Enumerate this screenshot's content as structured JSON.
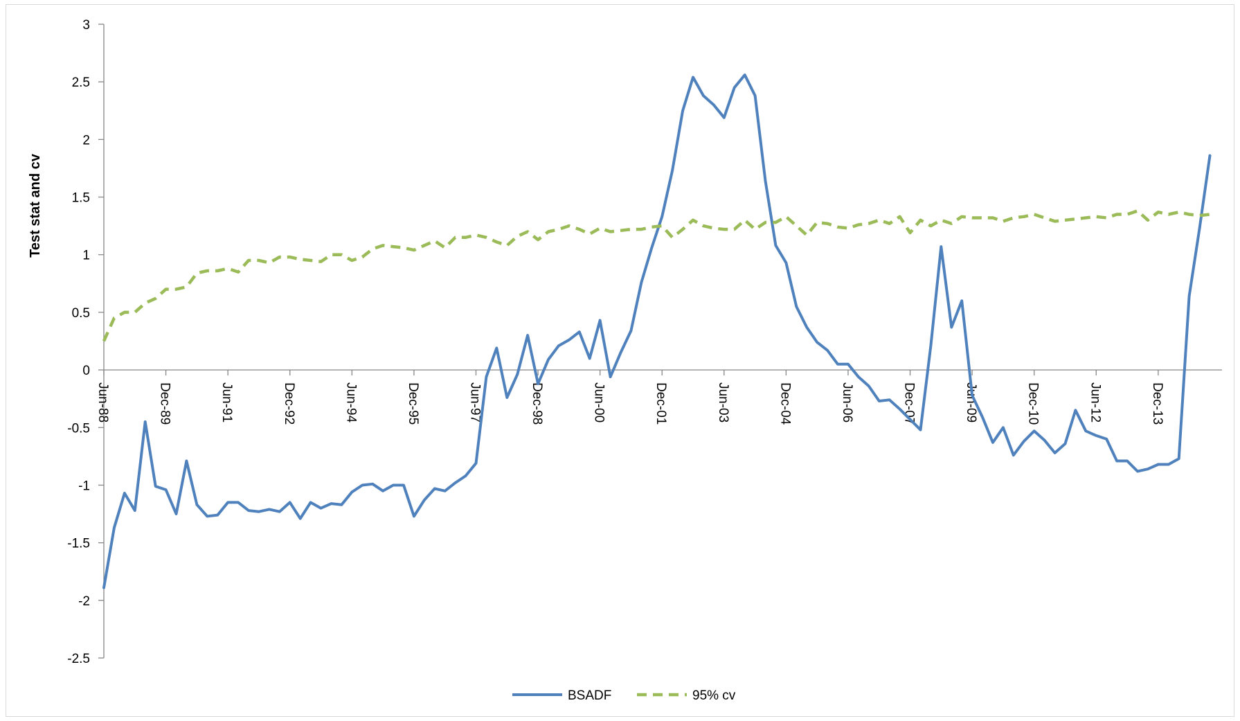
{
  "chart_data": {
    "type": "line",
    "title": "",
    "xlabel": "",
    "ylabel": "Test stat and cv",
    "ylim": [
      -2.5,
      3
    ],
    "yticks": [
      3,
      2.5,
      2,
      1.5,
      1,
      0.5,
      0,
      -0.5,
      -1,
      -1.5,
      -2,
      -2.5
    ],
    "ytick_labels": [
      "3",
      "2.5",
      "2",
      "1.5",
      "1",
      "0.5",
      "0",
      "-0.5",
      "-1",
      "-1.5",
      "-2",
      "-2.5"
    ],
    "x_range": [
      "Jun-88",
      "Mar-15"
    ],
    "xtick_labels": [
      "Jun-88",
      "Dec-89",
      "Jun-91",
      "Dec-92",
      "Jun-94",
      "Dec-95",
      "Jun-97",
      "Dec-98",
      "Jun-00",
      "Dec-01",
      "Jun-03",
      "Dec-04",
      "Jun-06",
      "Dec-07",
      "Jun-09",
      "Dec-10",
      "Jun-12",
      "Dec-13"
    ],
    "grid": false,
    "legend_position": "bottom",
    "series": [
      {
        "name": "BSADF",
        "color": "#4f81bd",
        "style": "solid",
        "values": [
          -1.89,
          -1.37,
          -1.07,
          -1.22,
          -0.45,
          -1.01,
          -1.04,
          -1.25,
          -0.79,
          -1.17,
          -1.27,
          -1.26,
          -1.15,
          -1.15,
          -1.22,
          -1.23,
          -1.21,
          -1.23,
          -1.15,
          -1.29,
          -1.15,
          -1.2,
          -1.16,
          -1.17,
          -1.06,
          -1,
          -0.99,
          -1.05,
          -1,
          -1,
          -1.27,
          -1.13,
          -1.03,
          -1.05,
          -0.98,
          -0.92,
          -0.81,
          -0.06,
          0.19,
          -0.24,
          -0.04,
          0.3,
          -0.12,
          0.09,
          0.21,
          0.26,
          0.33,
          0.1,
          0.43,
          -0.06,
          0.15,
          0.34,
          0.76,
          1.06,
          1.33,
          1.73,
          2.25,
          2.54,
          2.38,
          2.3,
          2.19,
          2.45,
          2.56,
          2.38,
          1.64,
          1.08,
          0.93,
          0.55,
          0.37,
          0.24,
          0.17,
          0.05,
          0.05,
          -0.06,
          -0.14,
          -0.27,
          -0.26,
          -0.34,
          -0.43,
          -0.52,
          0.21,
          1.07,
          0.37,
          0.6,
          -0.22,
          -0.41,
          -0.63,
          -0.5,
          -0.74,
          -0.62,
          -0.53,
          -0.61,
          -0.72,
          -0.64,
          -0.35,
          -0.53,
          -0.57,
          -0.6,
          -0.79,
          -0.79,
          -0.88,
          -0.86,
          -0.82,
          -0.82,
          -0.77,
          0.64,
          1.23,
          1.86
        ]
      },
      {
        "name": "95% cv",
        "color": "#9bbb59",
        "style": "dashed",
        "values": [
          0.25,
          0.45,
          0.5,
          0.5,
          0.58,
          0.62,
          0.7,
          0.7,
          0.72,
          0.84,
          0.86,
          0.86,
          0.88,
          0.85,
          0.95,
          0.95,
          0.93,
          0.98,
          0.98,
          0.96,
          0.95,
          0.94,
          1.0,
          1.0,
          0.95,
          0.98,
          1.05,
          1.08,
          1.07,
          1.06,
          1.04,
          1.08,
          1.12,
          1.06,
          1.15,
          1.15,
          1.17,
          1.15,
          1.11,
          1.08,
          1.16,
          1.2,
          1.13,
          1.2,
          1.22,
          1.25,
          1.22,
          1.18,
          1.23,
          1.2,
          1.21,
          1.22,
          1.22,
          1.24,
          1.25,
          1.15,
          1.22,
          1.3,
          1.25,
          1.23,
          1.22,
          1.22,
          1.3,
          1.22,
          1.28,
          1.28,
          1.33,
          1.25,
          1.17,
          1.28,
          1.27,
          1.24,
          1.23,
          1.26,
          1.27,
          1.3,
          1.27,
          1.33,
          1.19,
          1.3,
          1.25,
          1.3,
          1.27,
          1.33,
          1.32,
          1.32,
          1.32,
          1.29,
          1.32,
          1.33,
          1.35,
          1.32,
          1.29,
          1.3,
          1.31,
          1.32,
          1.33,
          1.32,
          1.35,
          1.35,
          1.38,
          1.3,
          1.37,
          1.35,
          1.37,
          1.35,
          1.34,
          1.35
        ]
      }
    ]
  }
}
